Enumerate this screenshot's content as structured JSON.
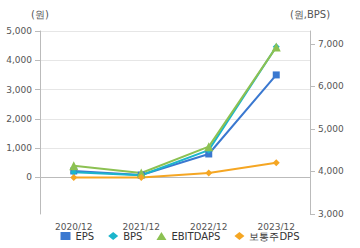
{
  "chart_data": {
    "type": "line",
    "categories": [
      "2020/12",
      "2021/12",
      "2022/12",
      "2023/12"
    ],
    "y_label": "(원)",
    "y2_label": "(원,BPS)",
    "ylim": [
      -1250,
      5000
    ],
    "yticks": [
      0,
      {
        "value": 1000,
        "label": "1,000"
      },
      {
        "value": 2000,
        "label": "2,000"
      },
      {
        "value": 3000,
        "label": "3,000"
      },
      {
        "value": 4000,
        "label": "4,000"
      },
      {
        "value": 5000,
        "label": "5,000"
      }
    ],
    "y2lim": [
      3000,
      7300
    ],
    "y2ticks": [
      {
        "value": 3000,
        "label": "3,000"
      },
      {
        "value": 4000,
        "label": "4,000"
      },
      {
        "value": 5000,
        "label": "5,000"
      },
      {
        "value": 6000,
        "label": "6,000"
      },
      {
        "value": 7000,
        "label": "7,000"
      }
    ],
    "grid": true,
    "legend": "bottom",
    "series": [
      {
        "name": "EPS",
        "color": "#3a78d0",
        "marker": "square",
        "line_style": "solid",
        "values": [
          220,
          80,
          800,
          3500
        ]
      },
      {
        "name": "BPS",
        "color": "#1bb5cc",
        "marker": "diamond",
        "line_style": "solid",
        "axis": "y2",
        "values": [
          3980,
          3910,
          4500,
          6930
        ]
      },
      {
        "name": "EBITDAPS",
        "color": "#8cc152",
        "marker": "triangle",
        "line_style": "solid",
        "values": [
          400,
          150,
          1050,
          4450
        ]
      },
      {
        "name": "보통주DPS",
        "color": "#f5a623",
        "marker": "diamond",
        "line_style": "solid",
        "values": [
          0,
          0,
          150,
          500
        ]
      }
    ]
  }
}
